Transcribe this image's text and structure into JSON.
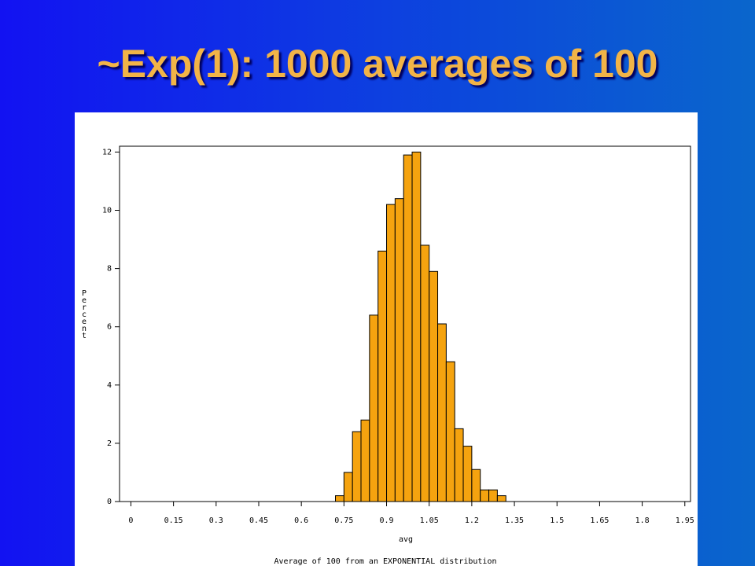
{
  "slide": {
    "title": "~Exp(1): 1000 averages of 100"
  },
  "chart_data": {
    "type": "histogram",
    "xlabel": "avg",
    "ylabel": "Percent",
    "caption": "Average of 100 from an EXPONENTIAL distribution",
    "bins": [
      0.72,
      0.75,
      0.78,
      0.81,
      0.84,
      0.87,
      0.9,
      0.93,
      0.96,
      0.99,
      1.02,
      1.05,
      1.08,
      1.11,
      1.14,
      1.17,
      1.2,
      1.23,
      1.26,
      1.29,
      1.32
    ],
    "values": [
      0.2,
      1.0,
      2.4,
      2.8,
      6.4,
      8.6,
      10.2,
      10.4,
      11.9,
      12.0,
      8.8,
      7.9,
      6.1,
      4.8,
      2.5,
      1.9,
      1.1,
      0.4,
      0.4,
      0.2
    ],
    "color": "#f5a30f",
    "xlim": [
      -0.04,
      1.97
    ],
    "ylim": [
      0,
      12.2
    ],
    "xticks": [
      0,
      0.15,
      0.3,
      0.45,
      0.6,
      0.75,
      0.9,
      1.05,
      1.2,
      1.35,
      1.5,
      1.65,
      1.8,
      1.95
    ],
    "yticks": [
      0,
      2,
      4,
      6,
      8,
      10,
      12
    ]
  }
}
